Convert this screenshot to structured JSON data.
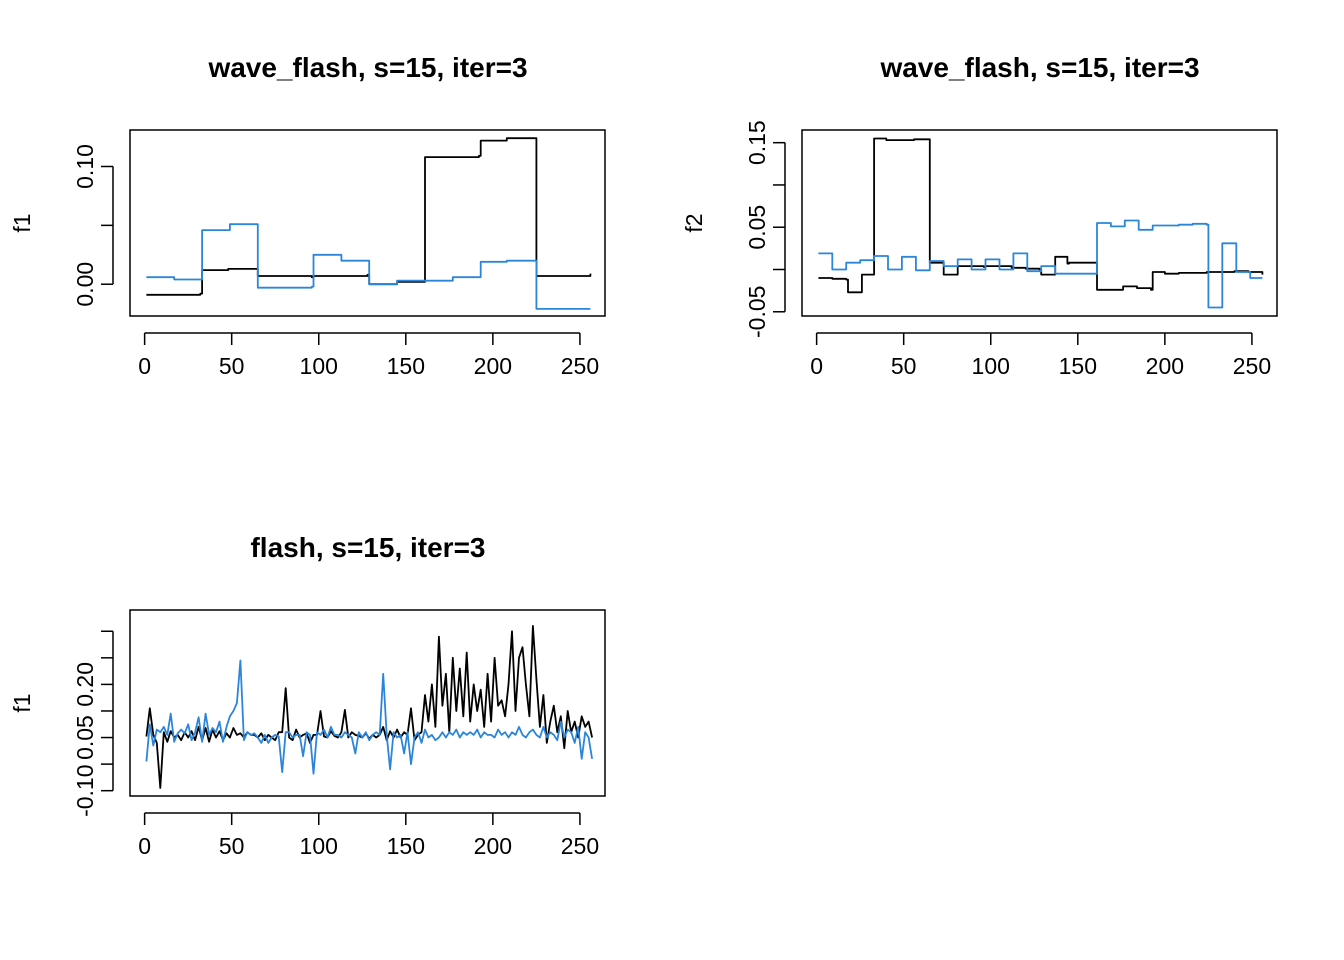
{
  "colors": {
    "series1": "#000000",
    "series2": "#2b86d9"
  },
  "chart_data": [
    {
      "type": "line",
      "title": "wave_flash, s=15, iter=3",
      "xlabel": "",
      "ylabel": "f1",
      "xlim": [
        -8.4,
        264.4
      ],
      "ylim": [
        -0.027,
        0.131
      ],
      "xticks": [
        0,
        50,
        100,
        150,
        200,
        250
      ],
      "yticks": [
        0.0,
        0.05,
        0.1
      ],
      "ytick_labels": [
        "0.00",
        "",
        "0.10"
      ],
      "series": [
        {
          "step": true,
          "x": [
            1,
            17,
            32,
            33,
            48,
            64,
            65,
            96,
            97,
            128,
            129,
            144,
            145,
            160,
            161,
            176,
            192,
            193,
            208,
            224,
            225,
            256
          ],
          "y": [
            -0.009,
            -0.009,
            -0.008,
            0.012,
            0.013,
            0.013,
            0.007,
            0.006,
            0.007,
            0.008,
            0.0,
            0.0,
            0.002,
            0.002,
            0.108,
            0.108,
            0.109,
            0.122,
            0.124,
            0.124,
            0.007,
            0.009
          ]
        },
        {
          "step": true,
          "x": [
            1,
            16,
            17,
            32,
            33,
            48,
            49,
            64,
            65,
            96,
            97,
            112,
            113,
            128,
            129,
            144,
            145,
            176,
            177,
            192,
            193,
            208,
            224,
            225,
            256
          ],
          "y": [
            0.006,
            0.006,
            0.004,
            0.004,
            0.046,
            0.046,
            0.051,
            0.051,
            -0.003,
            -0.002,
            0.025,
            0.025,
            0.02,
            0.02,
            0.0,
            0.0,
            0.003,
            0.003,
            0.006,
            0.006,
            0.019,
            0.02,
            0.02,
            -0.021,
            -0.021
          ]
        }
      ]
    },
    {
      "type": "line",
      "title": "wave_flash, s=15, iter=3",
      "xlabel": "",
      "ylabel": "f2",
      "xlim": [
        -8.4,
        264.4
      ],
      "ylim": [
        -0.055,
        0.165
      ],
      "xticks": [
        0,
        50,
        100,
        150,
        200,
        250
      ],
      "yticks": [
        -0.05,
        0.0,
        0.05,
        0.1,
        0.15
      ],
      "ytick_labels": [
        "-0.05",
        "",
        "0.05",
        "",
        "0.15"
      ],
      "series": [
        {
          "step": true,
          "x": [
            1,
            9,
            17,
            18,
            25,
            26,
            32,
            33,
            40,
            48,
            56,
            64,
            65,
            72,
            73,
            80,
            81,
            96,
            97,
            112,
            120,
            128,
            129,
            136,
            137,
            144,
            145,
            152,
            160,
            161,
            168,
            176,
            184,
            192,
            193,
            200,
            208,
            224,
            240,
            248,
            256
          ],
          "y": [
            -0.01,
            -0.011,
            -0.012,
            -0.027,
            -0.027,
            -0.006,
            -0.006,
            0.155,
            0.153,
            0.153,
            0.154,
            0.154,
            0.008,
            0.008,
            -0.006,
            -0.006,
            0.004,
            0.003,
            0.004,
            0.002,
            0.001,
            0.0,
            -0.006,
            -0.006,
            0.015,
            0.007,
            0.008,
            0.008,
            0.008,
            -0.024,
            -0.024,
            -0.02,
            -0.022,
            -0.024,
            -0.003,
            -0.005,
            -0.004,
            -0.003,
            -0.002,
            -0.003,
            -0.006
          ]
        },
        {
          "step": true,
          "x": [
            1,
            8,
            9,
            16,
            17,
            24,
            25,
            32,
            33,
            40,
            41,
            48,
            49,
            56,
            57,
            64,
            65,
            72,
            73,
            80,
            81,
            88,
            89,
            96,
            97,
            104,
            105,
            112,
            113,
            120,
            121,
            128,
            129,
            136,
            137,
            160,
            161,
            168,
            169,
            176,
            177,
            184,
            185,
            192,
            193,
            200,
            208,
            216,
            224,
            225,
            232,
            233,
            240,
            241,
            248,
            249,
            256
          ],
          "y": [
            0.019,
            0.019,
            0.0,
            0.0,
            0.008,
            0.008,
            0.011,
            0.011,
            0.016,
            0.016,
            0.0,
            0.0,
            0.015,
            0.015,
            -0.001,
            -0.001,
            0.01,
            0.01,
            0.004,
            0.004,
            0.012,
            0.012,
            0.0,
            0.0,
            0.012,
            0.012,
            0.0,
            0.0,
            0.019,
            0.019,
            -0.002,
            -0.002,
            0.004,
            0.004,
            -0.005,
            -0.005,
            0.055,
            0.055,
            0.051,
            0.051,
            0.058,
            0.058,
            0.047,
            0.047,
            0.052,
            0.052,
            0.053,
            0.054,
            0.053,
            -0.045,
            -0.045,
            0.031,
            0.031,
            -0.003,
            -0.003,
            -0.01,
            -0.01
          ]
        }
      ]
    },
    {
      "type": "line",
      "title": "flash, s=15, iter=3",
      "xlabel": "",
      "ylabel": "f1",
      "xlim": [
        -8.4,
        264.4
      ],
      "ylim": [
        -0.11,
        0.24
      ],
      "xticks": [
        0,
        50,
        100,
        150,
        200,
        250
      ],
      "yticks": [
        -0.1,
        -0.05,
        0.0,
        0.05,
        0.1,
        0.15,
        0.2
      ],
      "ytick_labels": [
        "-0.10",
        "",
        "0.05",
        "",
        "0.20",
        "",
        ""
      ],
      "series": [
        {
          "step": false,
          "x": [
            1,
            3,
            5,
            7,
            9,
            11,
            13,
            15,
            17,
            19,
            21,
            23,
            25,
            27,
            29,
            31,
            33,
            35,
            37,
            39,
            41,
            43,
            45,
            47,
            49,
            51,
            53,
            55,
            57,
            59,
            61,
            63,
            65,
            67,
            69,
            71,
            73,
            75,
            77,
            79,
            81,
            83,
            85,
            87,
            89,
            91,
            93,
            95,
            97,
            99,
            101,
            103,
            105,
            107,
            109,
            111,
            113,
            115,
            117,
            119,
            121,
            123,
            125,
            127,
            129,
            131,
            133,
            135,
            137,
            139,
            141,
            143,
            145,
            147,
            149,
            151,
            153,
            155,
            157,
            159,
            161,
            163,
            165,
            167,
            169,
            171,
            173,
            175,
            177,
            179,
            181,
            183,
            185,
            187,
            189,
            191,
            193,
            195,
            197,
            199,
            201,
            203,
            205,
            207,
            209,
            211,
            213,
            215,
            217,
            219,
            221,
            223,
            225,
            227,
            229,
            231,
            233,
            235,
            237,
            239,
            241,
            243,
            245,
            247,
            249,
            251,
            253,
            255,
            257
          ],
          "y": [
            0.002,
            0.055,
            0.005,
            -0.01,
            -0.095,
            0.01,
            -0.008,
            0.012,
            0.0,
            0.005,
            -0.005,
            0.01,
            0.0,
            0.012,
            -0.005,
            0.02,
            -0.005,
            0.018,
            -0.008,
            0.015,
            0.0,
            0.012,
            -0.005,
            0.008,
            0.0,
            0.018,
            0.005,
            0.008,
            0.0,
            0.01,
            0.005,
            0.005,
            0.0,
            0.008,
            -0.005,
            0.005,
            0.0,
            -0.005,
            0.01,
            0.01,
            0.093,
            0.0,
            -0.005,
            0.015,
            0.0,
            0.005,
            0.008,
            -0.01,
            0.005,
            0.005,
            0.05,
            0.002,
            0.0,
            0.012,
            0.003,
            0.0,
            0.01,
            0.052,
            0.0,
            0.01,
            0.005,
            0.003,
            0.0,
            0.008,
            -0.002,
            0.005,
            0.0,
            0.005,
            0.02,
            -0.005,
            0.012,
            0.0,
            0.015,
            0.0,
            0.01,
            0.005,
            0.055,
            -0.005,
            0.005,
            0.01,
            0.08,
            0.03,
            0.1,
            0.02,
            0.19,
            0.06,
            0.12,
            0.01,
            0.15,
            0.05,
            0.13,
            0.04,
            0.16,
            0.03,
            0.1,
            0.05,
            0.09,
            0.02,
            0.12,
            0.03,
            0.15,
            0.06,
            0.07,
            0.04,
            0.1,
            0.2,
            0.05,
            0.15,
            0.17,
            0.1,
            0.04,
            0.21,
            0.11,
            0.02,
            0.08,
            -0.01,
            0.03,
            0.06,
            0.01,
            0.04,
            -0.02,
            0.05,
            0.01,
            0.03,
            0.0,
            0.04,
            0.02,
            0.03,
            0.0
          ]
        },
        {
          "step": false,
          "x": [
            1,
            3,
            5,
            7,
            9,
            11,
            13,
            15,
            17,
            19,
            21,
            23,
            25,
            27,
            29,
            31,
            33,
            35,
            37,
            39,
            41,
            43,
            45,
            47,
            49,
            51,
            53,
            55,
            57,
            59,
            61,
            63,
            65,
            67,
            69,
            71,
            73,
            75,
            77,
            79,
            81,
            83,
            85,
            87,
            89,
            91,
            93,
            95,
            97,
            99,
            101,
            103,
            105,
            107,
            109,
            111,
            113,
            115,
            117,
            119,
            121,
            123,
            125,
            127,
            129,
            131,
            133,
            135,
            137,
            139,
            141,
            143,
            145,
            147,
            149,
            151,
            153,
            155,
            157,
            159,
            161,
            163,
            165,
            167,
            169,
            171,
            173,
            175,
            177,
            179,
            181,
            183,
            185,
            187,
            189,
            191,
            193,
            195,
            197,
            199,
            201,
            203,
            205,
            207,
            209,
            211,
            213,
            215,
            217,
            219,
            221,
            223,
            225,
            227,
            229,
            231,
            233,
            235,
            237,
            239,
            241,
            243,
            245,
            247,
            249,
            251,
            253,
            255,
            257
          ],
          "y": [
            -0.045,
            0.025,
            -0.015,
            0.015,
            0.01,
            0.02,
            0.005,
            0.045,
            -0.008,
            0.008,
            0.015,
            0.008,
            0.025,
            -0.005,
            0.01,
            0.038,
            -0.008,
            0.045,
            0.005,
            0.018,
            0.01,
            0.03,
            -0.008,
            0.02,
            0.04,
            0.05,
            0.065,
            0.145,
            -0.005,
            0.01,
            0.005,
            0.008,
            0.0,
            -0.01,
            0.005,
            -0.01,
            0.0,
            0.005,
            0.002,
            -0.065,
            0.01,
            0.01,
            0.0,
            0.005,
            0.005,
            -0.035,
            0.01,
            0.005,
            -0.068,
            0.01,
            0.005,
            0.015,
            0.0,
            0.02,
            0.005,
            0.005,
            0.0,
            0.01,
            0.005,
            0.0,
            -0.03,
            0.01,
            0.0,
            0.01,
            -0.005,
            0.005,
            0.01,
            0.005,
            0.12,
            0.005,
            -0.06,
            0.01,
            0.0,
            0.005,
            -0.03,
            0.01,
            -0.05,
            0.0,
            0.01,
            -0.01,
            0.015,
            0.0,
            0.005,
            -0.005,
            0.0,
            0.01,
            0.0,
            0.01,
            0.005,
            0.015,
            0.0,
            0.01,
            0.005,
            0.01,
            0.005,
            0.015,
            0.0,
            0.01,
            0.005,
            0.005,
            0.0,
            0.015,
            0.005,
            0.01,
            0.0,
            0.01,
            0.005,
            0.02,
            0.005,
            0.0,
            0.01,
            0.015,
            0.005,
            0.0,
            0.02,
            0.0,
            0.01,
            0.005,
            -0.005,
            0.03,
            0.0,
            0.015,
            0.01,
            -0.01,
            0.02,
            -0.04,
            0.01,
            0.0,
            -0.04
          ]
        }
      ]
    }
  ]
}
